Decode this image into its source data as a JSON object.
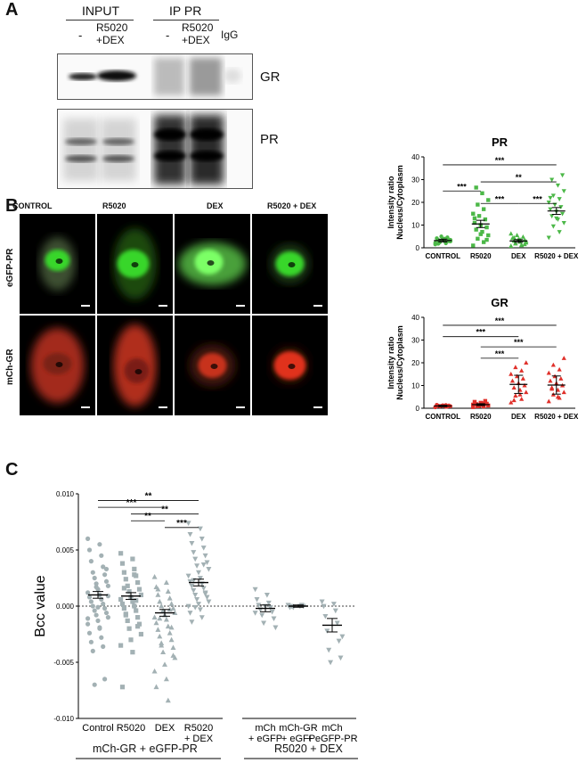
{
  "panel_a": {
    "letter": "A",
    "header_input": "INPUT",
    "header_ip": "IP PR",
    "lane_labels": [
      "-",
      "R5020\n+DEX",
      "-",
      "R5020\n+DEX",
      "IgG"
    ],
    "lane_minus_1": "-",
    "lane_r5020_1a": "R5020",
    "lane_r5020_1b": "+DEX",
    "lane_minus_2": "-",
    "lane_r5020_2a": "R5020",
    "lane_r5020_2b": "+DEX",
    "lane_igg": "IgG",
    "blot_gr": "GR",
    "blot_pr": "PR"
  },
  "panel_b": {
    "letter": "B",
    "columns": [
      "CONTROL",
      "R5020",
      "DEX",
      "R5020 + DEX"
    ],
    "rows": [
      "eGFP-PR",
      "mCh-GR"
    ],
    "colors": {
      "green": "#39d62a",
      "red": "#e0301f"
    }
  },
  "panel_c": {
    "letter": "C",
    "group1_label": "mCh-GR + eGFP-PR",
    "group2_label": "R5020 + DEX"
  },
  "chart_data": [
    {
      "type": "scatter",
      "title": "PR",
      "ylabel": "Intensity ratio\nNucleus/Cytoplasm",
      "ylabel_line1": "Intensity ratio",
      "ylabel_line2": "Nucleus/Cytoplasm",
      "ylim": [
        0,
        40
      ],
      "yticks": [
        "0",
        "10",
        "20",
        "30",
        "40"
      ],
      "categories": [
        "CONTROL",
        "R5020",
        "DEX",
        "R5020 + DEX"
      ],
      "color": "#4cb848",
      "means": [
        3.2,
        10.5,
        3.0,
        16.2
      ],
      "sem": [
        0.6,
        1.6,
        0.6,
        1.5
      ],
      "points": [
        [
          1.5,
          2.0,
          2.4,
          2.8,
          3.0,
          3.3,
          3.6,
          3.9,
          4.2,
          4.6,
          5.0,
          2.2,
          2.6,
          3.1,
          3.5,
          4.0,
          1.8,
          2.9
        ],
        [
          1.0,
          2.5,
          4.0,
          5.5,
          7.0,
          8.0,
          9.0,
          10.0,
          11.0,
          12.5,
          14.0,
          15.0,
          17.0,
          19.0,
          21.0,
          24.0,
          26.5,
          3.5,
          6.0,
          13.0
        ],
        [
          0.8,
          1.3,
          1.8,
          2.2,
          2.6,
          3.0,
          3.4,
          3.8,
          4.2,
          4.8,
          5.5,
          6.2,
          1.1,
          2.0,
          2.8,
          3.6,
          4.5,
          1.5
        ],
        [
          4.5,
          7.0,
          9.5,
          11.0,
          12.5,
          14.0,
          15.0,
          16.0,
          17.0,
          18.0,
          19.0,
          20.0,
          21.5,
          23.0,
          25.0,
          27.5,
          30.0,
          32.0,
          13.0,
          22.0
        ]
      ],
      "markers": [
        "circle",
        "square",
        "triangle-up",
        "triangle-down"
      ],
      "significance": [
        {
          "from": 0,
          "to": 3,
          "label": "***"
        },
        {
          "from": 1,
          "to": 3,
          "label": "**"
        },
        {
          "from": 0,
          "to": 1,
          "label": "***"
        },
        {
          "from": 1,
          "to": 2,
          "label": "***"
        },
        {
          "from": 2,
          "to": 3,
          "label": "***"
        }
      ]
    },
    {
      "type": "scatter",
      "title": "GR",
      "ylabel": "Intensity ratio\nNucleus/Cytoplasm",
      "ylabel_line1": "Intensity ratio",
      "ylabel_line2": "Nucleus/Cytoplasm",
      "ylim": [
        0,
        40
      ],
      "yticks": [
        "0",
        "10",
        "20",
        "30",
        "40"
      ],
      "categories": [
        "CONTROL",
        "R5020",
        "DEX",
        "R5020 + DEX"
      ],
      "color": "#e0302a",
      "means": [
        1.0,
        1.6,
        10.5,
        10.2
      ],
      "sem": [
        0.3,
        0.4,
        4.0,
        4.0
      ],
      "points": [
        [
          0.4,
          0.6,
          0.8,
          0.9,
          1.0,
          1.1,
          1.2,
          1.3,
          1.5,
          0.7,
          1.0,
          0.5,
          1.4,
          0.9
        ],
        [
          0.5,
          0.8,
          1.0,
          1.2,
          1.5,
          1.8,
          2.0,
          2.4,
          2.8,
          3.2,
          1.1,
          1.6,
          2.2,
          0.9
        ],
        [
          2.5,
          4.0,
          5.5,
          7.0,
          8.0,
          9.0,
          10.0,
          11.0,
          12.0,
          13.0,
          14.0,
          15.0,
          16.5,
          18.0,
          20.0,
          6.0,
          3.5
        ],
        [
          3.0,
          4.5,
          6.0,
          7.0,
          8.0,
          9.0,
          10.0,
          11.0,
          12.0,
          13.0,
          14.0,
          15.5,
          17.0,
          19.0,
          22.0,
          5.0,
          8.5
        ]
      ],
      "markers": [
        "circle",
        "square",
        "triangle-up",
        "triangle-up"
      ],
      "significance": [
        {
          "from": 0,
          "to": 3,
          "label": "***"
        },
        {
          "from": 0,
          "to": 2,
          "label": "***"
        },
        {
          "from": 1,
          "to": 3,
          "label": "***"
        },
        {
          "from": 1,
          "to": 2,
          "label": "***"
        }
      ]
    },
    {
      "type": "scatter",
      "title": "",
      "ylabel": "Bcc value",
      "ylim": [
        -0.01,
        0.01
      ],
      "yticks": [
        "-0.010",
        "-0.005",
        "0.000",
        "0.005",
        "0.010"
      ],
      "categories": [
        "Control",
        "R5020",
        "DEX",
        "R5020\n+ DEX",
        "mCh\n+ eGFP",
        "mCh-GR\n+ eGFP",
        "mCh\n+ eGFP-PR"
      ],
      "category_lines": [
        [
          "Control"
        ],
        [
          "R5020"
        ],
        [
          "DEX"
        ],
        [
          "R5020",
          "+ DEX"
        ],
        [
          "mCh",
          "+ eGFP"
        ],
        [
          "mCh-GR",
          "+ eGFP"
        ],
        [
          "mCh",
          "+ eGFP-PR"
        ]
      ],
      "color": "#a3b1b4",
      "means": [
        0.001,
        0.0009,
        -0.0006,
        0.0021,
        -0.0002,
        0.0,
        -0.0017
      ],
      "sem": [
        0.0003,
        0.0003,
        0.0003,
        0.0003,
        0.0003,
        0.0001,
        0.0006
      ],
      "points": [
        [
          0.006,
          0.0055,
          0.005,
          0.0045,
          0.004,
          0.0035,
          0.003,
          0.0028,
          0.0025,
          0.0022,
          0.002,
          0.0018,
          0.0015,
          0.0012,
          0.001,
          0.0008,
          0.0006,
          0.0004,
          0.0002,
          0.0,
          -0.0002,
          -0.0004,
          -0.0006,
          -0.0008,
          -0.001,
          -0.0013,
          -0.0016,
          -0.002,
          -0.0024,
          -0.0028,
          -0.0032,
          -0.0036,
          -0.004,
          -0.0065,
          -0.007,
          0.0033,
          0.0017,
          0.0009,
          -0.0001,
          -0.0011,
          -0.0019
        ],
        [
          0.0047,
          0.0042,
          0.0038,
          0.0033,
          0.003,
          0.0027,
          0.0024,
          0.0021,
          0.0018,
          0.0015,
          0.0013,
          0.001,
          0.0008,
          0.0006,
          0.0004,
          0.0002,
          0.0,
          -0.0002,
          -0.0004,
          -0.0007,
          -0.001,
          -0.0013,
          -0.0016,
          -0.002,
          -0.0025,
          -0.003,
          -0.0035,
          -0.0041,
          -0.0072,
          0.0028,
          0.0016,
          0.0005,
          -0.0008,
          -0.0018
        ],
        [
          0.0026,
          0.0021,
          0.0017,
          0.0013,
          0.001,
          0.0007,
          0.0004,
          0.0002,
          0.0,
          -0.0002,
          -0.0004,
          -0.0006,
          -0.0008,
          -0.001,
          -0.0012,
          -0.0015,
          -0.0018,
          -0.0021,
          -0.0024,
          -0.0027,
          -0.003,
          -0.0033,
          -0.0037,
          -0.0041,
          -0.0046,
          -0.0052,
          -0.0058,
          -0.0065,
          -0.0072,
          -0.0084,
          0.0015,
          -0.0003,
          -0.0011,
          -0.0019,
          -0.0035,
          -0.0044
        ],
        [
          0.0074,
          0.0069,
          0.0064,
          0.006,
          0.0056,
          0.0052,
          0.0048,
          0.0045,
          0.0042,
          0.0039,
          0.0036,
          0.0033,
          0.003,
          0.0027,
          0.0025,
          0.0022,
          0.002,
          0.0018,
          0.0016,
          0.0014,
          0.0012,
          0.001,
          0.0008,
          0.0006,
          0.0004,
          0.0002,
          0.0,
          -0.0003,
          -0.0006,
          -0.001,
          -0.0014,
          0.0037,
          0.0023,
          0.0011,
          -0.0001
        ],
        [
          0.0015,
          0.001,
          0.0006,
          0.0003,
          0.0001,
          -0.0001,
          -0.0003,
          -0.0005,
          -0.0008,
          -0.0011,
          -0.0015,
          -0.0019,
          0.0,
          -0.0006
        ],
        [
          0.0001,
          0.0,
          -0.0001,
          0.0001,
          0.0,
          0.0,
          -0.0001
        ],
        [
          0.0004,
          0.0002,
          0.0,
          -0.0004,
          -0.0009,
          -0.0015,
          -0.0022,
          -0.0031,
          -0.0039,
          -0.0046,
          -0.005,
          -0.0027
        ]
      ],
      "markers": [
        "circle",
        "square",
        "triangle-up",
        "triangle-down",
        "triangle-down",
        "triangle-down",
        "triangle-down"
      ],
      "significance": [
        {
          "from": 0,
          "to": 3,
          "label": "**"
        },
        {
          "from": 0,
          "to": 2,
          "label": "***"
        },
        {
          "from": 1,
          "to": 3,
          "label": "**"
        },
        {
          "from": 1,
          "to": 2,
          "label": "**"
        },
        {
          "from": 2,
          "to": 3,
          "label": "***"
        }
      ]
    }
  ]
}
